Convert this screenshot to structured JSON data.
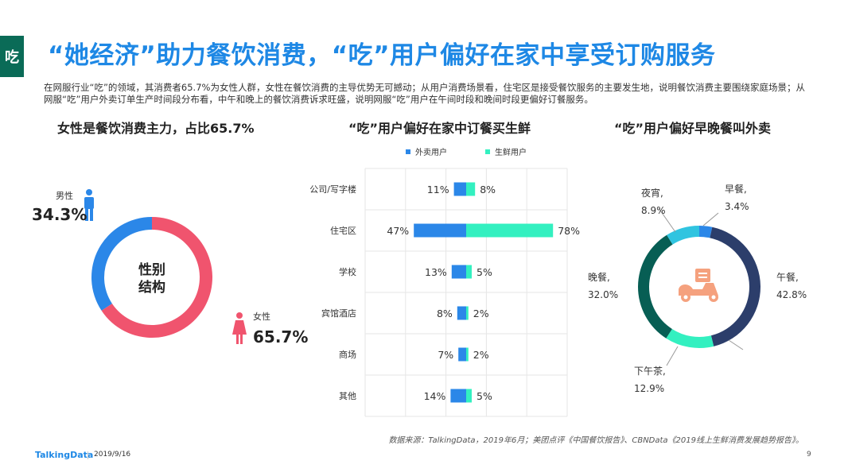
{
  "side_tab": "吃",
  "title": "“她经济”助力餐饮消费，“吃”用户偏好在家中享受订购服务",
  "intro": "在网服行业“吃”的领域，其消费者65.7%为女性人群，女性在餐饮消费的主导优势无可撼动；从用户消费场景看，住宅区是接受餐饮服务的主要发生地，说明餐饮消费主要围绕家庭场景；从网服“吃”用户外卖订单生产时间段分布看，中午和晚上的餐饮消费诉求旺盛，说明网服“吃”用户在午间时段和晚间时段更偏好订餐服务。",
  "colors": {
    "blue": "#2b87e8",
    "red": "#f0546e",
    "green": "#33f0c0",
    "navy": "#2c3e6b",
    "teal": "#075e54",
    "cyan": "#30c4e0",
    "accent": "#1e88e5"
  },
  "chart_data": [
    {
      "type": "pie",
      "title": "女性是餐饮消费主力，占比65.7%",
      "center_label": [
        "性别",
        "结构"
      ],
      "slices": [
        {
          "name": "男性",
          "value": 34.3,
          "label": "34.3%",
          "color": "#2b87e8",
          "icon": "male-icon"
        },
        {
          "name": "女性",
          "value": 65.7,
          "label": "65.7%",
          "color": "#f0546e",
          "icon": "female-icon"
        }
      ]
    },
    {
      "type": "bar",
      "title": "“吃”用户偏好在家中订餐买生鲜",
      "legend_position": "top",
      "categories": [
        "公司/写字楼",
        "住宅区",
        "学校",
        "宾馆酒店",
        "商场",
        "其他"
      ],
      "series": [
        {
          "name": "外卖用户",
          "color": "#2b87e8",
          "values": [
            11,
            47,
            13,
            8,
            7,
            14
          ],
          "labels": [
            "11%",
            "47%",
            "13%",
            "8%",
            "7%",
            "14%"
          ]
        },
        {
          "name": "生鲜用户",
          "color": "#33f0c0",
          "values": [
            8,
            78,
            5,
            2,
            2,
            5
          ],
          "labels": [
            "8%",
            "78%",
            "5%",
            "2%",
            "2%",
            "5%"
          ]
        }
      ]
    },
    {
      "type": "pie",
      "title": "“吃”用户偏好早晚餐叫外卖",
      "icon": "scooter-icon",
      "slices": [
        {
          "name": "早餐,",
          "value": 3.4,
          "label": "3.4%",
          "color": "#2b87e8"
        },
        {
          "name": "午餐,",
          "value": 42.8,
          "label": "42.8%",
          "color": "#2c3e6b"
        },
        {
          "name": "下午茶,",
          "value": 12.9,
          "label": "12.9%",
          "color": "#33f0c0"
        },
        {
          "name": "晚餐,",
          "value": 32.0,
          "label": "32.0%",
          "color": "#075e54"
        },
        {
          "name": "夜宵,",
          "value": 8.9,
          "label": "8.9%",
          "color": "#30c4e0"
        }
      ]
    }
  ],
  "footer": {
    "source": "数据来源：TalkingData，2019年6月；美团点评《中国餐饮报告》、CBNData《2019线上生鲜消费发展趋势报告》。",
    "logo": "TalkingData",
    "date": "2019/9/16",
    "page": "9"
  }
}
